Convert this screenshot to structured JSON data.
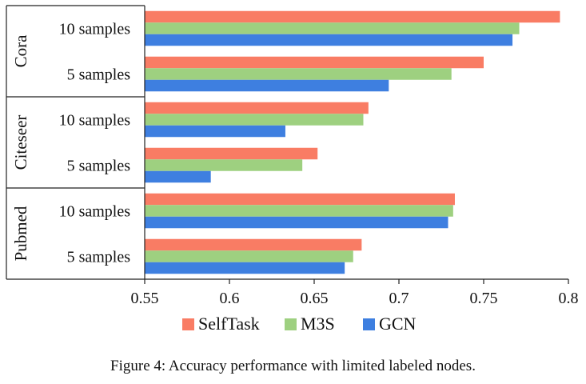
{
  "chart_data": {
    "type": "bar",
    "orientation": "horizontal",
    "title": "",
    "xlabel": "",
    "ylabel": "",
    "xlim": [
      0.55,
      0.8
    ],
    "xticks": [
      0.55,
      0.6,
      0.65,
      0.7,
      0.75,
      0.8
    ],
    "xtick_labels": [
      "0.55",
      "0.6",
      "0.65",
      "0.7",
      "0.75",
      "0.8"
    ],
    "groups": [
      {
        "name": "Cora",
        "categories": [
          "10 samples",
          "5 samples"
        ]
      },
      {
        "name": "Citeseer",
        "categories": [
          "10 samples",
          "5 samples"
        ]
      },
      {
        "name": "Pubmed",
        "categories": [
          "10 samples",
          "5 samples"
        ]
      }
    ],
    "categories": [
      "Cora 10 samples",
      "Cora 5 samples",
      "Citeseer 10 samples",
      "Citeseer 5 samples",
      "Pubmed 10 samples",
      "Pubmed 5 samples"
    ],
    "series": [
      {
        "name": "SelfTask",
        "color": "#f97c64",
        "values": [
          0.795,
          0.75,
          0.682,
          0.652,
          0.733,
          0.678
        ]
      },
      {
        "name": "M3S",
        "color": "#9ed080",
        "values": [
          0.771,
          0.731,
          0.679,
          0.643,
          0.732,
          0.673
        ]
      },
      {
        "name": "GCN",
        "color": "#3e7fe0",
        "values": [
          0.767,
          0.694,
          0.633,
          0.589,
          0.729,
          0.668
        ]
      }
    ],
    "legend_position": "bottom",
    "grid": false
  },
  "caption": "Figure 4: Accuracy performance with limited labeled nodes."
}
